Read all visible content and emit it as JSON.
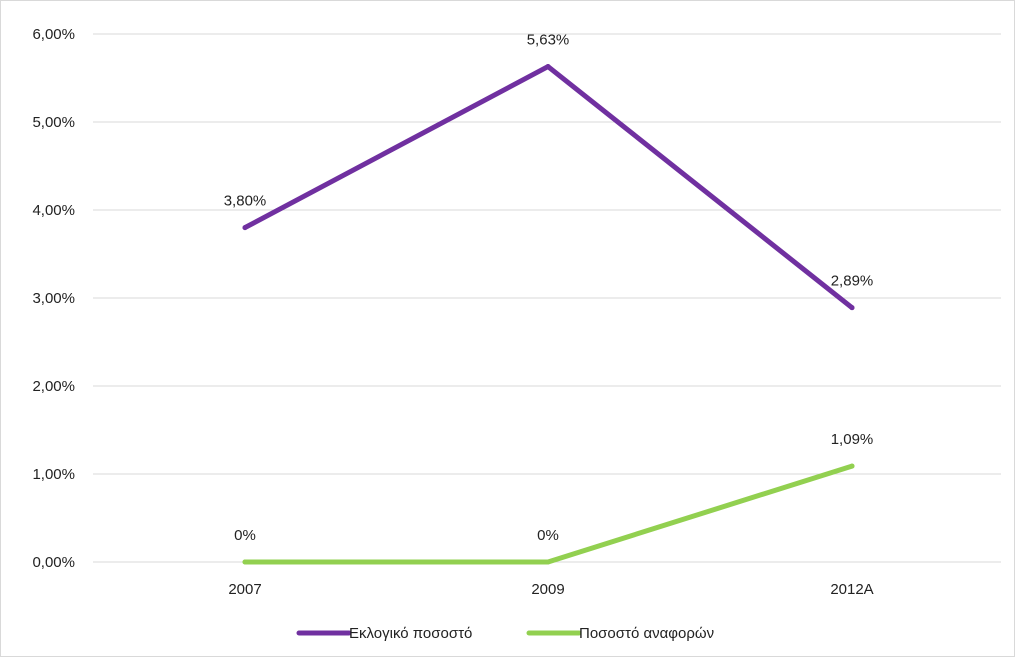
{
  "chart_data": {
    "type": "line",
    "categories": [
      "2007",
      "2009",
      "2012A"
    ],
    "series": [
      {
        "name": "Εκλογικό ποσοστό",
        "values": [
          3.8,
          5.63,
          2.89
        ],
        "labels": [
          "3,80%",
          "5,63%",
          "2,89%"
        ],
        "color": "#7030a0"
      },
      {
        "name": "Ποσοστό αναφορών",
        "values": [
          0,
          0,
          1.09
        ],
        "labels": [
          "0%",
          "0%",
          "1,09%"
        ],
        "color": "#92d050"
      }
    ],
    "y_ticks": [
      {
        "value": 0,
        "label": "0,00%"
      },
      {
        "value": 1,
        "label": "1,00%"
      },
      {
        "value": 2,
        "label": "2,00%"
      },
      {
        "value": 3,
        "label": "3,00%"
      },
      {
        "value": 4,
        "label": "4,00%"
      },
      {
        "value": 5,
        "label": "5,00%"
      },
      {
        "value": 6,
        "label": "6,00%"
      }
    ],
    "ylim": [
      0,
      6
    ],
    "grid": true,
    "legend_position": "bottom"
  }
}
